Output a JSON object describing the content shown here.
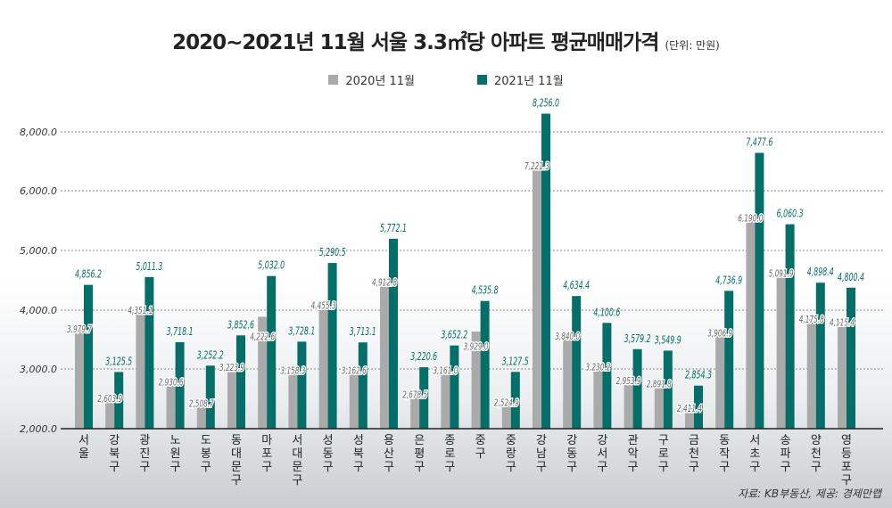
{
  "title": "2020~2021년 11월 서울 3.3㎡당 아파트 평균매매가격",
  "unit": "(단위: 만원)",
  "source": "자료: KB부동산, 제공: 경제만랩",
  "colors": {
    "2020": "#aaaaaa",
    "2021": "#046e68"
  },
  "chart_data": {
    "type": "bar",
    "title": "2020~2021년 11월 서울 3.3㎡당 아파트 평균매매가격",
    "ylabel": "(단위: 만원)",
    "yticks": [
      "2,000.0",
      "3,000.0",
      "4,000.0",
      "5,000.0",
      "6,000.0",
      "8,000.0"
    ],
    "ylim": [
      2000,
      8800
    ],
    "grid": true,
    "legend": "top-center",
    "categories": [
      "서울",
      "강북구",
      "광진구",
      "노원구",
      "도봉구",
      "동대문구",
      "마포구",
      "서대문구",
      "성동구",
      "성북구",
      "용산구",
      "은평구",
      "종로구",
      "중구",
      "중랑구",
      "강남구",
      "강동구",
      "강서구",
      "관악구",
      "구로구",
      "금천구",
      "동작구",
      "서초구",
      "송파구",
      "양천구",
      "영등포구"
    ],
    "series": [
      {
        "name": "2020년 11월",
        "values": [
          3979.7,
          2603.9,
          4351.1,
          2930.6,
          2508.7,
          3223.9,
          4222.6,
          3158.3,
          4455.3,
          3162.6,
          4912.8,
          2678.5,
          3161.0,
          3929.0,
          2524.9,
          7221.3,
          3840.0,
          3230.2,
          2953.9,
          2891.8,
          2411.4,
          3906.9,
          6190.0,
          5091.9,
          4175.8,
          4115.4
        ]
      },
      {
        "name": "2021년 11월",
        "values": [
          4856.2,
          3125.5,
          5011.3,
          3718.1,
          3252.2,
          3852.6,
          5032.0,
          3728.1,
          5290.5,
          3713.1,
          5772.1,
          3220.6,
          3652.2,
          4535.8,
          3127.5,
          8256.0,
          4634.4,
          4100.6,
          3579.2,
          3549.9,
          2854.3,
          4736.9,
          7477.6,
          6060.3,
          4898.4,
          4800.4
        ]
      }
    ]
  }
}
